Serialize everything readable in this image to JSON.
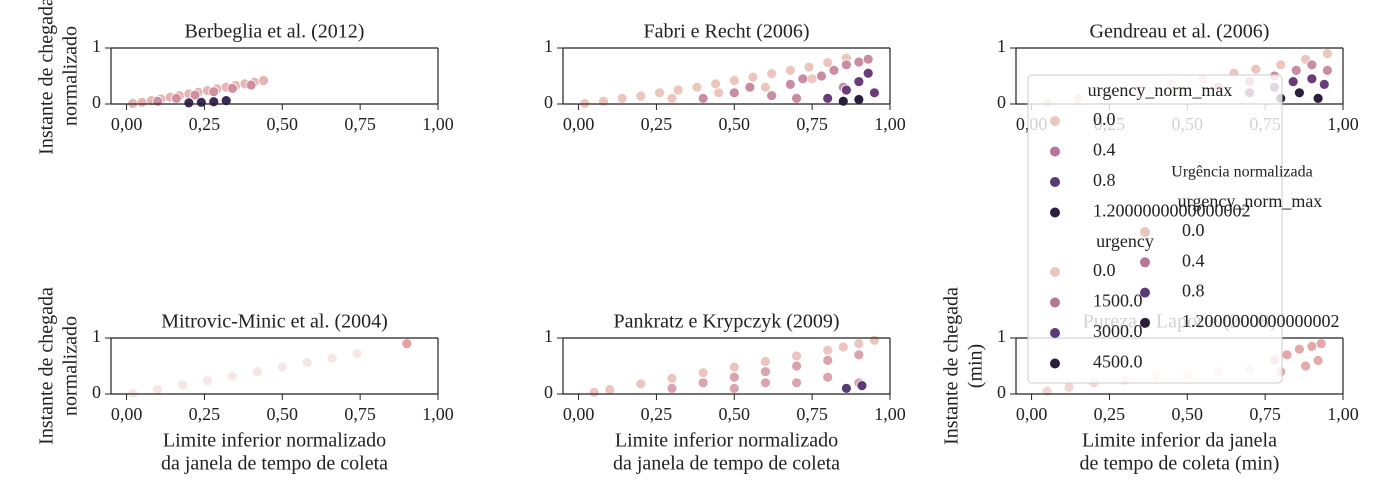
{
  "chart_data": [
    {
      "type": "scatter",
      "title": "Berbeglia et al. (2012)",
      "ylabel": [
        "Instante de chegada",
        "normalizado"
      ],
      "xlim": [
        -0.05,
        1.0
      ],
      "ylim": [
        0,
        1
      ],
      "xticks": [
        {
          "value": 0,
          "label": "0,00"
        },
        {
          "value": 0.25,
          "label": "0,25"
        },
        {
          "value": 0.5,
          "label": "0,50"
        },
        {
          "value": 0.75,
          "label": "0,75"
        },
        {
          "value": 1,
          "label": "1,00"
        }
      ],
      "yticks": [
        0,
        1
      ],
      "series": [
        {
          "color": "#e8b4b3",
          "x": [
            0.02,
            0.05,
            0.08,
            0.11,
            0.14,
            0.17,
            0.2,
            0.23,
            0.26,
            0.29,
            0.32,
            0.35,
            0.38,
            0.41,
            0.44
          ],
          "values": [
            0.01,
            0.03,
            0.06,
            0.09,
            0.12,
            0.15,
            0.18,
            0.21,
            0.24,
            0.27,
            0.3,
            0.33,
            0.36,
            0.39,
            0.42
          ]
        },
        {
          "color": "#cf8fa0",
          "x": [
            0.1,
            0.16,
            0.22,
            0.28,
            0.34,
            0.4
          ],
          "values": [
            0.05,
            0.1,
            0.16,
            0.22,
            0.28,
            0.34
          ]
        },
        {
          "color": "#3d2a55",
          "x": [
            0.2,
            0.24,
            0.28,
            0.32
          ],
          "values": [
            0.02,
            0.03,
            0.04,
            0.06
          ]
        }
      ]
    },
    {
      "type": "scatter",
      "title": "Fabri e Recht (2006)",
      "xlim": [
        -0.05,
        1.0
      ],
      "ylim": [
        0,
        1
      ],
      "xticks": [
        {
          "value": 0,
          "label": "0,00"
        },
        {
          "value": 0.25,
          "label": "0,25"
        },
        {
          "value": 0.5,
          "label": "0,50"
        },
        {
          "value": 0.75,
          "label": "0,75"
        },
        {
          "value": 1,
          "label": "1,00"
        }
      ],
      "yticks": [
        0,
        1
      ],
      "series": [
        {
          "color": "#ecc6bd",
          "x": [
            0.02,
            0.08,
            0.14,
            0.2,
            0.26,
            0.32,
            0.38,
            0.44,
            0.5,
            0.56,
            0.62,
            0.68,
            0.74,
            0.8,
            0.86,
            0.3,
            0.45,
            0.6,
            0.75
          ],
          "values": [
            0.01,
            0.05,
            0.1,
            0.14,
            0.2,
            0.25,
            0.3,
            0.36,
            0.42,
            0.48,
            0.54,
            0.6,
            0.66,
            0.74,
            0.82,
            0.1,
            0.2,
            0.3,
            0.45
          ]
        },
        {
          "color": "#c98da3",
          "x": [
            0.4,
            0.5,
            0.55,
            0.62,
            0.68,
            0.72,
            0.78,
            0.82,
            0.86,
            0.9,
            0.93,
            0.7,
            0.85
          ],
          "values": [
            0.1,
            0.2,
            0.3,
            0.15,
            0.35,
            0.45,
            0.5,
            0.6,
            0.7,
            0.75,
            0.8,
            0.1,
            0.3
          ]
        },
        {
          "color": "#6a3d7a",
          "x": [
            0.8,
            0.86,
            0.9,
            0.93,
            0.95
          ],
          "values": [
            0.1,
            0.25,
            0.4,
            0.55,
            0.2
          ]
        },
        {
          "color": "#2b1d3b",
          "x": [
            0.85,
            0.9
          ],
          "values": [
            0.05,
            0.08
          ]
        }
      ]
    },
    {
      "type": "scatter",
      "title": "Gendreau et al. (2006)",
      "xlim": [
        -0.05,
        1.0
      ],
      "ylim": [
        0,
        1
      ],
      "xticks": [
        {
          "value": 0,
          "label": "0,00"
        },
        {
          "value": 0.25,
          "label": "0,25"
        },
        {
          "value": 0.5,
          "label": "0,50"
        },
        {
          "value": 0.75,
          "label": "0,75"
        },
        {
          "value": 1,
          "label": "1,00"
        }
      ],
      "yticks": [
        0,
        1
      ],
      "series": [
        {
          "color": "#ecc6bd",
          "x": [
            0.05,
            0.15,
            0.25,
            0.35,
            0.45,
            0.55,
            0.65,
            0.72,
            0.8,
            0.88,
            0.95
          ],
          "values": [
            0.03,
            0.1,
            0.18,
            0.27,
            0.36,
            0.45,
            0.55,
            0.62,
            0.7,
            0.8,
            0.9
          ]
        },
        {
          "color": "#c98da3",
          "x": [
            0.6,
            0.7,
            0.78,
            0.85,
            0.9,
            0.95
          ],
          "values": [
            0.3,
            0.4,
            0.5,
            0.6,
            0.7,
            0.6
          ]
        },
        {
          "color": "#6a3d7a",
          "x": [
            0.7,
            0.78,
            0.84,
            0.9,
            0.94
          ],
          "values": [
            0.2,
            0.3,
            0.4,
            0.45,
            0.35
          ]
        },
        {
          "color": "#2b1d3b",
          "x": [
            0.8,
            0.86,
            0.92
          ],
          "values": [
            0.1,
            0.2,
            0.1
          ]
        }
      ]
    },
    {
      "type": "scatter",
      "title": "Mitrovic-Minic et al. (2004)",
      "ylabel": [
        "Instante de chegada",
        "normalizado"
      ],
      "xlabel": [
        "Limite inferior normalizado",
        "da janela de tempo de coleta"
      ],
      "xlim": [
        -0.05,
        1.0
      ],
      "ylim": [
        0,
        1
      ],
      "xticks": [
        {
          "value": 0,
          "label": "0,00"
        },
        {
          "value": 0.25,
          "label": "0,25"
        },
        {
          "value": 0.5,
          "label": "0,50"
        },
        {
          "value": 0.75,
          "label": "0,75"
        },
        {
          "value": 1,
          "label": "1,00"
        }
      ],
      "yticks": [
        0,
        1
      ],
      "series": [
        {
          "color": "#f6e6e6",
          "x": [
            0.02,
            0.1,
            0.18,
            0.26,
            0.34,
            0.42,
            0.5,
            0.58,
            0.66,
            0.74
          ],
          "values": [
            0.01,
            0.08,
            0.16,
            0.24,
            0.32,
            0.4,
            0.48,
            0.56,
            0.64,
            0.72
          ]
        },
        {
          "color": "#e8a0a0",
          "x": [
            0.9
          ],
          "values": [
            0.9
          ]
        }
      ]
    },
    {
      "type": "scatter",
      "title": "Pankratz e Krypczyk (2009)",
      "xlabel": [
        "Limite inferior normalizado",
        "da janela de tempo de coleta"
      ],
      "xlim": [
        -0.05,
        1.0
      ],
      "ylim": [
        0,
        1
      ],
      "xticks": [
        {
          "value": 0,
          "label": "0,00"
        },
        {
          "value": 0.25,
          "label": "0,25"
        },
        {
          "value": 0.5,
          "label": "0,50"
        },
        {
          "value": 0.75,
          "label": "0,75"
        },
        {
          "value": 1,
          "label": "1,00"
        }
      ],
      "yticks": [
        0,
        1
      ],
      "series": [
        {
          "color": "#ecc6bd",
          "x": [
            0.05,
            0.1,
            0.2,
            0.3,
            0.4,
            0.5,
            0.6,
            0.7,
            0.8,
            0.85,
            0.9,
            0.95
          ],
          "values": [
            0.03,
            0.08,
            0.18,
            0.28,
            0.38,
            0.48,
            0.58,
            0.68,
            0.78,
            0.84,
            0.9,
            0.96
          ]
        },
        {
          "color": "#d9a3b0",
          "x": [
            0.3,
            0.4,
            0.5,
            0.5,
            0.6,
            0.6,
            0.7,
            0.7,
            0.8,
            0.8,
            0.9,
            0.9
          ],
          "values": [
            0.1,
            0.2,
            0.1,
            0.3,
            0.2,
            0.4,
            0.2,
            0.5,
            0.3,
            0.6,
            0.2,
            0.7
          ]
        },
        {
          "color": "#5a3a75",
          "x": [
            0.86,
            0.91
          ],
          "values": [
            0.1,
            0.15
          ]
        }
      ]
    },
    {
      "type": "scatter",
      "title": "Pureza e Laporte (2008)",
      "ylabel": [
        "Instante de chegada",
        "(min)"
      ],
      "xlabel": [
        "Limite inferior da janela",
        "de tempo de coleta (min)"
      ],
      "xlim": [
        -0.05,
        1.0
      ],
      "ylim": [
        0,
        1
      ],
      "xticks": [
        {
          "value": 0,
          "label": "0,00"
        },
        {
          "value": 0.25,
          "label": "0,25"
        },
        {
          "value": 0.5,
          "label": "0,50"
        },
        {
          "value": 0.75,
          "label": "0,75"
        },
        {
          "value": 1,
          "label": "1,00"
        }
      ],
      "yticks": [
        0,
        1
      ],
      "series": [
        {
          "color": "#f2d6d2",
          "x": [
            0.05,
            0.12,
            0.2,
            0.3,
            0.4,
            0.5,
            0.6,
            0.7
          ],
          "values": [
            0.05,
            0.12,
            0.2,
            0.25,
            0.3,
            0.35,
            0.4,
            0.45
          ]
        },
        {
          "color": "#e3a9a9",
          "x": [
            0.78,
            0.82,
            0.86,
            0.9,
            0.93,
            0.8,
            0.88,
            0.92
          ],
          "values": [
            0.6,
            0.7,
            0.8,
            0.85,
            0.9,
            0.4,
            0.5,
            0.6
          ]
        }
      ]
    }
  ],
  "legends": [
    {
      "sections": [
        {
          "title": "urgency_norm_max",
          "entries": [
            {
              "label": "0.0",
              "color": "#ecc6bd"
            },
            {
              "label": "0.4",
              "color": "#b9749a"
            },
            {
              "label": "0.8",
              "color": "#5a3a75"
            },
            {
              "label": "1.2000000000000002",
              "color": "#2b1d3b"
            }
          ]
        },
        {
          "title": "urgency",
          "entries": [
            {
              "label": "0.0",
              "color": "#ecc6bd"
            },
            {
              "label": "1500.0",
              "color": "#b9749a"
            },
            {
              "label": "3000.0",
              "color": "#5a3a75"
            },
            {
              "label": "4500.0",
              "color": "#2b1d3b"
            }
          ]
        }
      ]
    },
    {
      "title": "Urgência normalizada",
      "sections": [
        {
          "title": "urgency_norm_max",
          "entries": [
            {
              "label": "0.0",
              "color": "#ecc6bd"
            },
            {
              "label": "0.4",
              "color": "#b9749a"
            },
            {
              "label": "0.8",
              "color": "#5a3a75"
            },
            {
              "label": "1.2000000000000002",
              "color": "#2b1d3b"
            }
          ]
        }
      ]
    }
  ]
}
